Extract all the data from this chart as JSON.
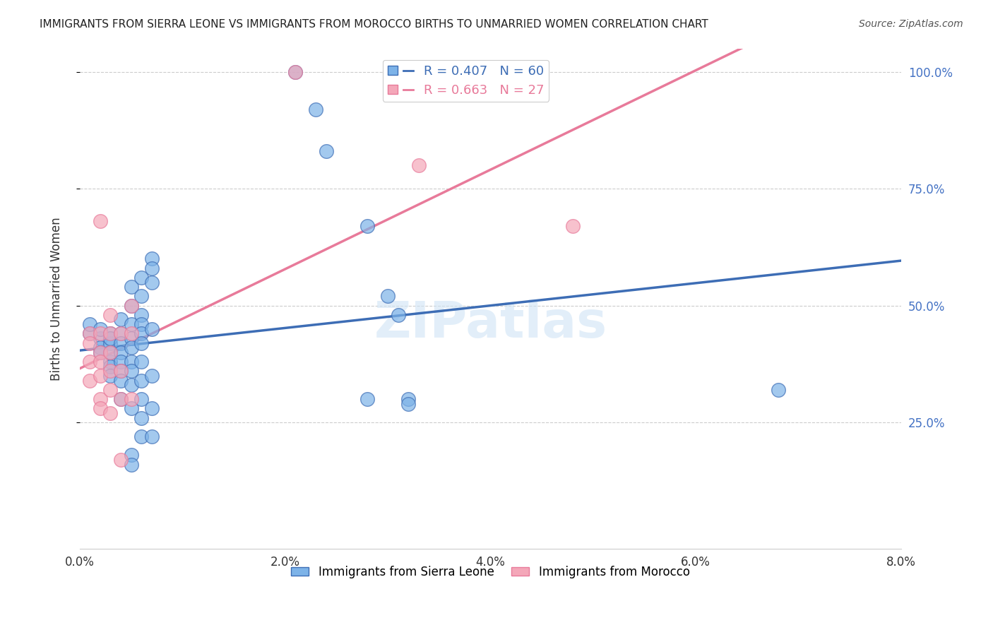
{
  "title": "IMMIGRANTS FROM SIERRA LEONE VS IMMIGRANTS FROM MOROCCO BIRTHS TO UNMARRIED WOMEN CORRELATION CHART",
  "source": "Source: ZipAtlas.com",
  "xlabel_blue": "Immigrants from Sierra Leone",
  "xlabel_pink": "Immigrants from Morocco",
  "ylabel": "Births to Unmarried Women",
  "R_blue": 0.407,
  "N_blue": 60,
  "R_pink": 0.663,
  "N_pink": 27,
  "xlim": [
    0.0,
    0.08
  ],
  "ylim": [
    0.0,
    1.05
  ],
  "xtick_labels": [
    "0.0%",
    "2.0%",
    "4.0%",
    "6.0%",
    "8.0%"
  ],
  "xtick_values": [
    0.0,
    0.02,
    0.04,
    0.06,
    0.08
  ],
  "ytick_labels": [
    "25.0%",
    "50.0%",
    "75.0%",
    "100.0%"
  ],
  "ytick_values": [
    0.25,
    0.5,
    0.75,
    1.0
  ],
  "color_blue": "#7db3e8",
  "color_pink": "#f4a7b9",
  "line_blue": "#3d6db5",
  "line_pink": "#e87a9a",
  "watermark": "ZIPatlas",
  "blue_points": [
    [
      0.001,
      0.44
    ],
    [
      0.001,
      0.46
    ],
    [
      0.002,
      0.43
    ],
    [
      0.002,
      0.45
    ],
    [
      0.002,
      0.41
    ],
    [
      0.002,
      0.4
    ],
    [
      0.003,
      0.42
    ],
    [
      0.003,
      0.38
    ],
    [
      0.003,
      0.44
    ],
    [
      0.003,
      0.43
    ],
    [
      0.003,
      0.4
    ],
    [
      0.003,
      0.37
    ],
    [
      0.003,
      0.35
    ],
    [
      0.004,
      0.44
    ],
    [
      0.004,
      0.42
    ],
    [
      0.004,
      0.4
    ],
    [
      0.004,
      0.38
    ],
    [
      0.004,
      0.36
    ],
    [
      0.004,
      0.34
    ],
    [
      0.004,
      0.3
    ],
    [
      0.004,
      0.47
    ],
    [
      0.005,
      0.54
    ],
    [
      0.005,
      0.5
    ],
    [
      0.005,
      0.46
    ],
    [
      0.005,
      0.43
    ],
    [
      0.005,
      0.41
    ],
    [
      0.005,
      0.38
    ],
    [
      0.005,
      0.36
    ],
    [
      0.005,
      0.33
    ],
    [
      0.005,
      0.28
    ],
    [
      0.005,
      0.18
    ],
    [
      0.005,
      0.16
    ],
    [
      0.006,
      0.56
    ],
    [
      0.006,
      0.52
    ],
    [
      0.006,
      0.48
    ],
    [
      0.006,
      0.46
    ],
    [
      0.006,
      0.44
    ],
    [
      0.006,
      0.42
    ],
    [
      0.006,
      0.38
    ],
    [
      0.006,
      0.34
    ],
    [
      0.006,
      0.3
    ],
    [
      0.006,
      0.26
    ],
    [
      0.006,
      0.22
    ],
    [
      0.007,
      0.6
    ],
    [
      0.007,
      0.58
    ],
    [
      0.007,
      0.55
    ],
    [
      0.007,
      0.45
    ],
    [
      0.007,
      0.35
    ],
    [
      0.007,
      0.28
    ],
    [
      0.007,
      0.22
    ],
    [
      0.021,
      1.0
    ],
    [
      0.023,
      0.92
    ],
    [
      0.024,
      0.83
    ],
    [
      0.028,
      0.67
    ],
    [
      0.028,
      0.3
    ],
    [
      0.03,
      0.52
    ],
    [
      0.031,
      0.48
    ],
    [
      0.032,
      0.3
    ],
    [
      0.032,
      0.29
    ],
    [
      0.068,
      0.32
    ]
  ],
  "pink_points": [
    [
      0.001,
      0.44
    ],
    [
      0.001,
      0.42
    ],
    [
      0.001,
      0.38
    ],
    [
      0.001,
      0.34
    ],
    [
      0.002,
      0.68
    ],
    [
      0.002,
      0.44
    ],
    [
      0.002,
      0.4
    ],
    [
      0.002,
      0.38
    ],
    [
      0.002,
      0.35
    ],
    [
      0.002,
      0.3
    ],
    [
      0.002,
      0.28
    ],
    [
      0.003,
      0.48
    ],
    [
      0.003,
      0.44
    ],
    [
      0.003,
      0.4
    ],
    [
      0.003,
      0.36
    ],
    [
      0.003,
      0.32
    ],
    [
      0.003,
      0.27
    ],
    [
      0.004,
      0.44
    ],
    [
      0.004,
      0.36
    ],
    [
      0.004,
      0.3
    ],
    [
      0.004,
      0.17
    ],
    [
      0.005,
      0.5
    ],
    [
      0.005,
      0.44
    ],
    [
      0.005,
      0.3
    ],
    [
      0.021,
      1.0
    ],
    [
      0.033,
      0.8
    ],
    [
      0.048,
      0.67
    ]
  ]
}
